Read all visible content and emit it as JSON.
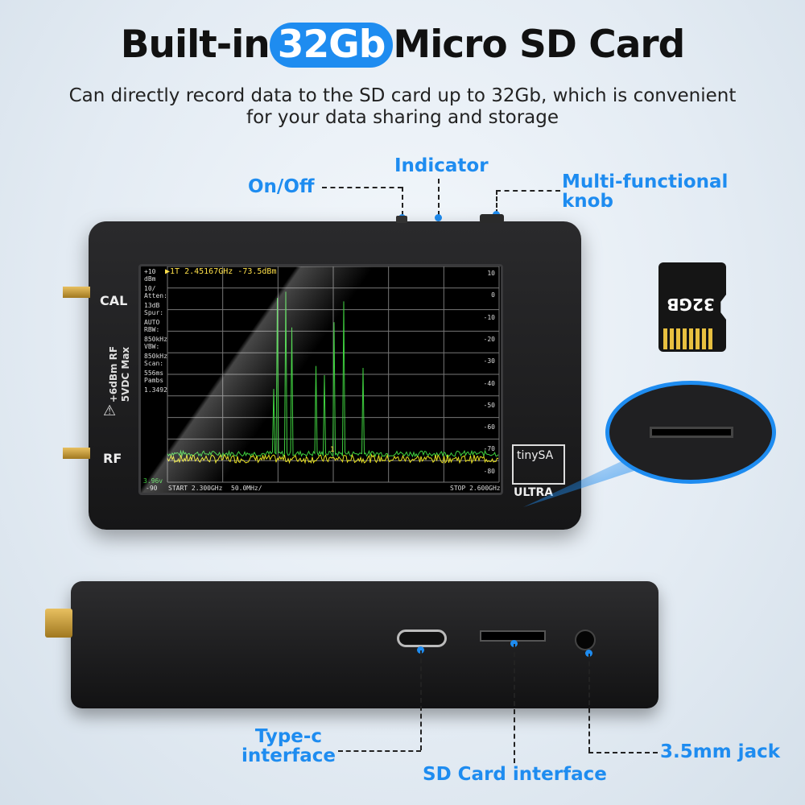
{
  "header": {
    "title_pre": "Built-in",
    "title_highlight": "32Gb",
    "title_post": "Micro SD Card",
    "subtitle_line1": "Can directly record data to the SD card up to 32Gb, which is convenient",
    "subtitle_line2": "for your data sharing and storage"
  },
  "callouts": {
    "on_off": "On/Off",
    "indicator": "Indicator",
    "knob_line1": "Multi-functional",
    "knob_line2": "knob",
    "type_c_line1": "Type-c",
    "type_c_line2": "interface",
    "sd_interface": "SD Card interface",
    "jack": "3.5mm jack"
  },
  "device": {
    "cal_label": "CAL",
    "rf_label": "RF",
    "rating_line1": "+6dBm RF",
    "rating_line2": "5VDC Max",
    "logo_text": "tinySA",
    "logo_sub": "ULTRA",
    "sd_card_text": "32GB"
  },
  "screen": {
    "marker": "▶1T  2.45167GHz -73.5dBm",
    "left_panel": [
      "+10",
      "dBm",
      "10/",
      "Atten:",
      " 13dB",
      "Spur:",
      "AUTO",
      "RBW:",
      "850kHz",
      "VBW:",
      "850kHz",
      "Scan:",
      " 556ms",
      "Pambs",
      "1.3492"
    ],
    "battery": "3.96v",
    "bottom_left_value": "-90",
    "start": "START 2.300GHz",
    "scale": "50.0MHz/",
    "stop": "STOP 2.600GHz",
    "y_ticks": [
      "10",
      "0",
      "-10",
      "-20",
      "-30",
      "-40",
      "-50",
      "-60",
      "-70",
      "-80"
    ],
    "marker_label": "1"
  },
  "colors": {
    "accent": "#1e8cf0",
    "trace_green": "#3fd13f",
    "trace_yellow": "#e6e020"
  }
}
